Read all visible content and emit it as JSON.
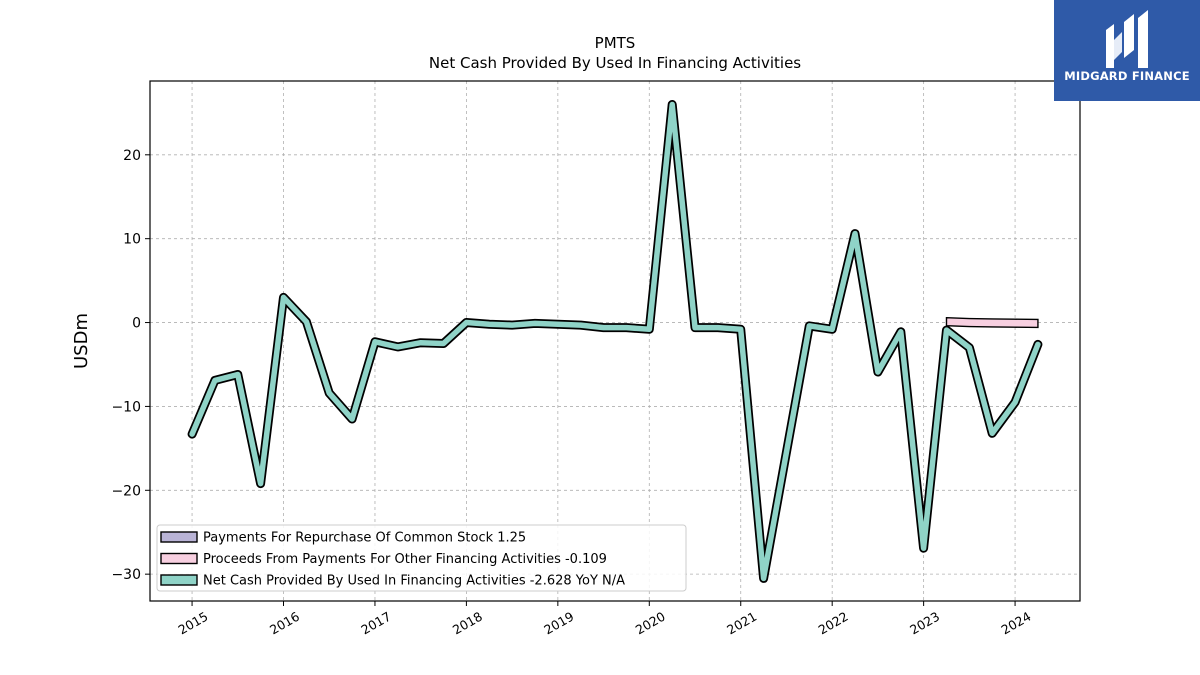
{
  "chart_data": {
    "type": "line",
    "title": "PMTS",
    "subtitle": "Net Cash Provided By Used In Financing Activities",
    "ylabel": "USDm",
    "xlabel": "",
    "ylim": [
      -33.2,
      28.8
    ],
    "xlim": [
      2014.54,
      2024.71
    ],
    "yticks": [
      20,
      10,
      0,
      -10,
      -20,
      -30
    ],
    "ytick_labels": [
      "20",
      "10",
      "0",
      "−10",
      "−20",
      "−30"
    ],
    "xticks": [
      2015,
      2016,
      2017,
      2018,
      2019,
      2020,
      2021,
      2022,
      2023,
      2024
    ],
    "xtick_labels": [
      "2015",
      "2016",
      "2017",
      "2018",
      "2019",
      "2020",
      "2021",
      "2022",
      "2023",
      "2024"
    ],
    "grid": true,
    "legend_position": "lower-left",
    "series": [
      {
        "name": "Payments For Repurchase Of Common Stock",
        "legend_label": "Payments For Repurchase Of Common Stock  1.25",
        "color": "#b9b3d6",
        "x": [],
        "values": []
      },
      {
        "name": "Proceeds From Payments For Other Financing Activities",
        "legend_label": "Proceeds From Payments For Other Financing Activities  -0.109",
        "color": "#f7cfe0",
        "x": [
          2023.25,
          2023.5,
          2023.75,
          2024.0,
          2024.25
        ],
        "values": [
          0.1,
          0.0,
          -0.05,
          -0.08,
          -0.109
        ]
      },
      {
        "name": "Net Cash Provided By Used In Financing Activities",
        "legend_label": "Net Cash Provided By Used In Financing Activities  -2.628 YoY N/A",
        "color": "#8fd3c7",
        "x": [
          2015.0,
          2015.25,
          2015.5,
          2015.75,
          2016.0,
          2016.25,
          2016.5,
          2016.75,
          2017.0,
          2017.25,
          2017.5,
          2017.75,
          2018.0,
          2018.25,
          2018.5,
          2018.75,
          2019.0,
          2019.25,
          2019.5,
          2019.75,
          2020.0,
          2020.25,
          2020.5,
          2020.75,
          2021.0,
          2021.25,
          2021.75,
          2022.0,
          2022.25,
          2022.5,
          2022.75,
          2023.0,
          2023.25,
          2023.5,
          2023.75,
          2024.0,
          2024.25
        ],
        "values": [
          -13.3,
          -6.9,
          -6.2,
          -19.2,
          3.0,
          0.1,
          -8.4,
          -11.5,
          -2.3,
          -2.9,
          -2.4,
          -2.5,
          0.0,
          -0.2,
          -0.3,
          -0.1,
          -0.2,
          -0.3,
          -0.6,
          -0.6,
          -0.8,
          26.0,
          -0.6,
          -0.6,
          -0.8,
          -30.5,
          -0.4,
          -0.8,
          10.6,
          -5.9,
          -1.1,
          -26.9,
          -0.9,
          -3.0,
          -13.2,
          -9.5,
          -2.6
        ]
      }
    ]
  },
  "logo": {
    "text": "MIDGARD FINANCE",
    "color": "#2f5aa8"
  }
}
